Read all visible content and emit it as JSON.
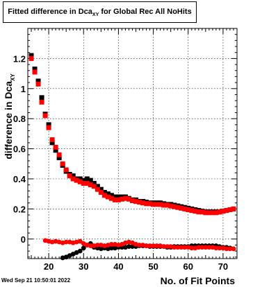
{
  "window": {
    "title_main": "Fitted difference in Dca",
    "title_sub": "XY",
    "title_rest": " for Global Rec All NoHits",
    "timestamp": "Wed Sep 21 10:50:01 2022"
  },
  "chart_data": {
    "type": "scatter",
    "xlabel": "No. of Fit Points",
    "ylabel_main": "difference in Dca",
    "ylabel_sub": "XY",
    "xlim": [
      14,
      74
    ],
    "ylim": [
      -0.13,
      1.4
    ],
    "x_ticks": [
      20,
      30,
      40,
      50,
      60,
      70
    ],
    "y_ticks": [
      0,
      0.2,
      0.4,
      0.6,
      0.8,
      1,
      1.2
    ],
    "y_tick_labels": [
      "0",
      "0.2",
      "0.4",
      "0.6",
      "0.8",
      "1",
      "1.2"
    ],
    "grid": true,
    "series": [
      {
        "marker": "square",
        "color": "#000000",
        "x": [
          15,
          16,
          17,
          18,
          19,
          20,
          21,
          22,
          23,
          24,
          25,
          26,
          27,
          28,
          29,
          30,
          31,
          32,
          33,
          34,
          35,
          36,
          37,
          38,
          39,
          40,
          41,
          42,
          43,
          44,
          45,
          46,
          47,
          48,
          49,
          50,
          51,
          52,
          53,
          54,
          55,
          56,
          57,
          58,
          59,
          60,
          61,
          62,
          63,
          64,
          65,
          66,
          67,
          68,
          69,
          70,
          71,
          72,
          73
        ],
        "y": [
          1.22,
          1.13,
          1.05,
          0.94,
          0.83,
          0.76,
          0.64,
          0.59,
          0.54,
          0.49,
          0.45,
          0.43,
          0.42,
          0.4,
          0.4,
          0.39,
          0.4,
          0.39,
          0.37,
          0.35,
          0.33,
          0.31,
          0.3,
          0.29,
          0.28,
          0.28,
          0.28,
          0.28,
          0.27,
          0.26,
          0.26,
          0.25,
          0.25,
          0.245,
          0.24,
          0.24,
          0.24,
          0.24,
          0.235,
          0.23,
          0.23,
          0.225,
          0.22,
          0.215,
          0.21,
          0.205,
          0.2,
          0.195,
          0.19,
          0.185,
          0.18,
          0.18,
          0.18,
          0.18,
          0.18,
          0.185,
          0.19,
          0.195,
          0.2
        ]
      },
      {
        "marker": "square",
        "color": "#ff0000",
        "x": [
          15,
          16,
          17,
          18,
          19,
          20,
          21,
          22,
          23,
          24,
          25,
          26,
          27,
          28,
          29,
          30,
          31,
          32,
          33,
          34,
          35,
          36,
          37,
          38,
          39,
          40,
          41,
          42,
          43,
          44,
          45,
          46,
          47,
          48,
          49,
          50,
          51,
          52,
          53,
          54,
          55,
          56,
          57,
          58,
          59,
          60,
          61,
          62,
          63,
          64,
          65,
          66,
          67,
          68,
          69,
          70,
          71,
          72,
          73
        ],
        "y": [
          1.2,
          1.11,
          1.03,
          0.91,
          0.82,
          0.74,
          0.66,
          0.61,
          0.56,
          0.5,
          0.46,
          0.42,
          0.4,
          0.39,
          0.38,
          0.37,
          0.37,
          0.36,
          0.35,
          0.33,
          0.31,
          0.29,
          0.28,
          0.27,
          0.26,
          0.26,
          0.265,
          0.27,
          0.265,
          0.255,
          0.25,
          0.245,
          0.24,
          0.235,
          0.235,
          0.23,
          0.23,
          0.23,
          0.225,
          0.225,
          0.22,
          0.215,
          0.21,
          0.205,
          0.2,
          0.195,
          0.19,
          0.185,
          0.18,
          0.18,
          0.175,
          0.175,
          0.175,
          0.175,
          0.18,
          0.185,
          0.19,
          0.195,
          0.2
        ]
      },
      {
        "marker": "circle",
        "color": "#000000",
        "x": [
          24,
          25,
          26,
          27,
          28,
          29,
          30,
          31,
          32,
          33,
          34,
          35,
          36,
          37,
          38,
          39,
          40,
          41,
          42,
          43,
          44,
          45,
          46,
          47,
          48,
          49,
          50,
          51,
          52,
          53,
          54,
          55,
          56,
          57,
          58,
          59,
          60,
          61,
          62,
          63,
          64,
          65,
          66,
          67,
          68,
          69,
          70,
          71,
          72,
          73
        ],
        "y": [
          -0.125,
          -0.12,
          -0.11,
          -0.1,
          -0.09,
          -0.08,
          -0.06,
          -0.04,
          -0.03,
          -0.055,
          -0.06,
          -0.065,
          -0.06,
          -0.065,
          -0.06,
          -0.06,
          -0.055,
          -0.055,
          -0.055,
          -0.05,
          -0.05,
          -0.05,
          -0.045,
          -0.045,
          -0.045,
          -0.05,
          -0.05,
          -0.05,
          -0.05,
          -0.05,
          -0.055,
          -0.055,
          -0.05,
          -0.05,
          -0.05,
          -0.05,
          -0.05,
          -0.045,
          -0.045,
          -0.045,
          -0.045,
          -0.045,
          -0.045,
          -0.045,
          -0.045,
          -0.05,
          -0.055,
          -0.055,
          -0.06,
          -0.065
        ]
      },
      {
        "marker": "circle",
        "color": "#ff0000",
        "x": [
          19,
          20,
          21,
          22,
          23,
          24,
          25,
          26,
          27,
          28,
          29,
          30,
          31,
          32,
          33,
          34,
          35,
          36,
          37,
          38,
          39,
          40,
          41,
          42,
          43,
          44,
          45,
          46,
          47,
          48,
          49,
          50,
          51,
          52,
          53,
          54,
          55,
          56,
          57,
          58,
          59,
          60,
          61,
          62,
          63,
          64,
          65,
          66,
          67,
          68,
          69,
          70,
          71,
          72,
          73
        ],
        "y": [
          -0.01,
          -0.015,
          -0.02,
          -0.015,
          -0.02,
          -0.025,
          -0.02,
          -0.02,
          -0.025,
          -0.02,
          -0.015,
          -0.03,
          -0.04,
          -0.045,
          -0.045,
          -0.04,
          -0.04,
          -0.045,
          -0.04,
          -0.035,
          -0.035,
          -0.04,
          -0.035,
          -0.025,
          -0.02,
          -0.025,
          -0.035,
          -0.04,
          -0.04,
          -0.045,
          -0.045,
          -0.045,
          -0.045,
          -0.045,
          -0.05,
          -0.05,
          -0.05,
          -0.055,
          -0.055,
          -0.055,
          -0.055,
          -0.055,
          -0.06,
          -0.06,
          -0.055,
          -0.055,
          -0.055,
          -0.055,
          -0.055,
          -0.06,
          -0.06,
          -0.06,
          -0.065,
          -0.065,
          -0.065
        ]
      }
    ]
  }
}
